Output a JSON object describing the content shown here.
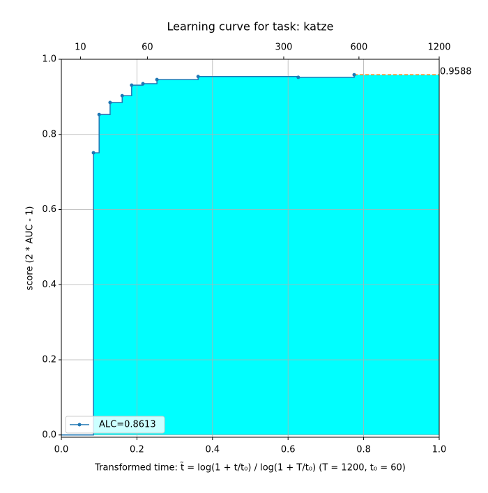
{
  "chart_data": {
    "type": "step",
    "title": "Learning curve for task: katze",
    "xlabel": "Transformed time: t̃ = log(1 + t/t₀) / log(1 + T/t₀)   (T = 1200,  t₀ = 60)",
    "ylabel": "score (2 * AUC - 1)",
    "x": [
      0.085,
      0.1,
      0.129,
      0.161,
      0.186,
      0.216,
      0.253,
      0.362,
      0.627,
      0.775
    ],
    "series": [
      {
        "name": "ALC=0.8613",
        "color": "#1f77b4",
        "fill": "#00ffff",
        "values": [
          0.751,
          0.853,
          0.885,
          0.903,
          0.931,
          0.935,
          0.946,
          0.954,
          0.952,
          0.9588
        ],
        "value_labels": [
          null,
          null,
          null,
          null,
          null,
          null,
          null,
          null,
          null,
          "0.9588"
        ]
      }
    ],
    "extension_color": "#ff7f0e",
    "xlim": [
      0,
      1
    ],
    "ylim": [
      -0.006,
      1
    ],
    "xticks": [
      {
        "value": 0,
        "label": "0.0"
      },
      {
        "value": 0.2,
        "label": "0.2"
      },
      {
        "value": 0.4,
        "label": "0.4"
      },
      {
        "value": 0.6,
        "label": "0.6"
      },
      {
        "value": 0.8,
        "label": "0.8"
      },
      {
        "value": 1,
        "label": "1.0"
      }
    ],
    "yticks": [
      {
        "value": 0,
        "label": "0.0"
      },
      {
        "value": 0.2,
        "label": "0.2"
      },
      {
        "value": 0.4,
        "label": "0.4"
      },
      {
        "value": 0.6,
        "label": "0.6"
      },
      {
        "value": 0.8,
        "label": "0.8"
      },
      {
        "value": 1,
        "label": "1.0"
      }
    ],
    "x2ticks": [
      {
        "value": 0.0506,
        "label": "10"
      },
      {
        "value": 0.2277,
        "label": "60"
      },
      {
        "value": 0.5885,
        "label": "300"
      },
      {
        "value": 0.7876,
        "label": "600"
      },
      {
        "value": 1,
        "label": "1200"
      }
    ],
    "grid": true,
    "legend": "lower left"
  }
}
